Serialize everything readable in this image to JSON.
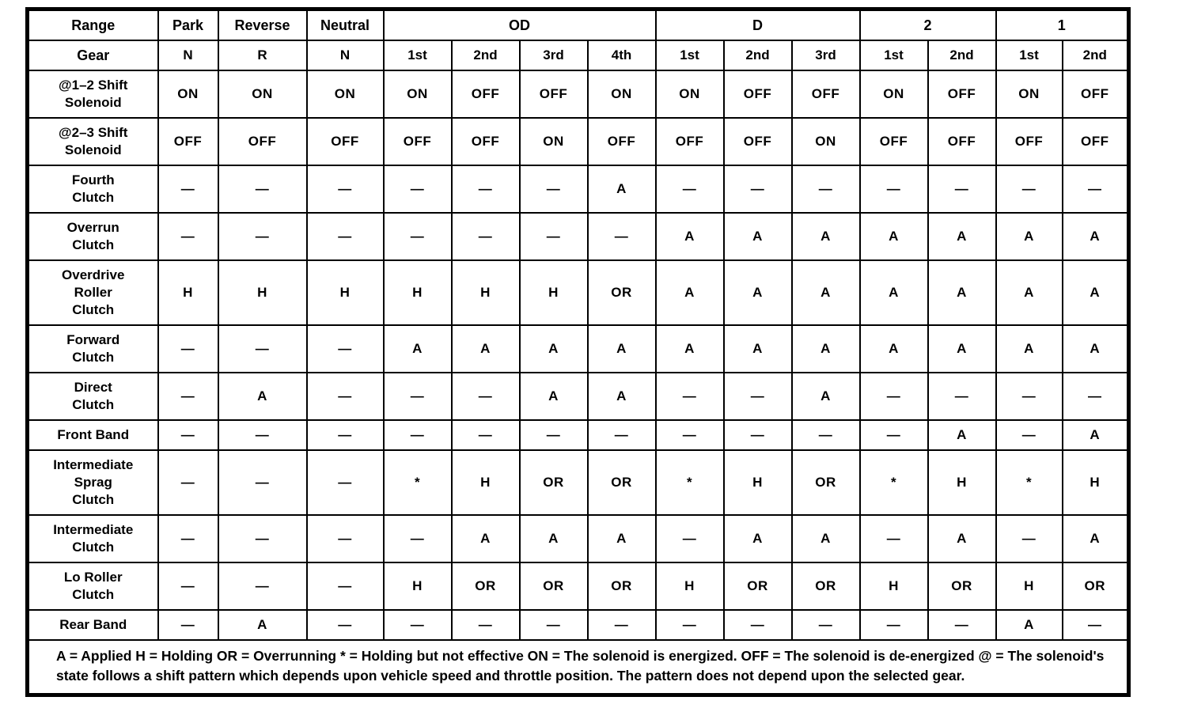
{
  "document": {
    "corner_headers": {
      "range": "Range",
      "gear": "Gear"
    },
    "range_groups": [
      {
        "label": "Park",
        "span": 1
      },
      {
        "label": "Reverse",
        "span": 1
      },
      {
        "label": "Neutral",
        "span": 1
      },
      {
        "label": "OD",
        "span": 4
      },
      {
        "label": "D",
        "span": 3
      },
      {
        "label": "2",
        "span": 2
      },
      {
        "label": "1",
        "span": 2
      }
    ],
    "gear_row": [
      "N",
      "R",
      "N",
      "1st",
      "2nd",
      "3rd",
      "4th",
      "1st",
      "2nd",
      "3rd",
      "1st",
      "2nd",
      "1st",
      "2nd"
    ],
    "rows": [
      {
        "label": "@1–2 Shift\nSolenoid",
        "values": [
          "ON",
          "ON",
          "ON",
          "ON",
          "OFF",
          "OFF",
          "ON",
          "ON",
          "OFF",
          "OFF",
          "ON",
          "OFF",
          "ON",
          "OFF"
        ]
      },
      {
        "label": "@2–3 Shift\nSolenoid",
        "values": [
          "OFF",
          "OFF",
          "OFF",
          "OFF",
          "OFF",
          "ON",
          "OFF",
          "OFF",
          "OFF",
          "ON",
          "OFF",
          "OFF",
          "OFF",
          "OFF"
        ]
      },
      {
        "label": "Fourth\nClutch",
        "values": [
          "—",
          "—",
          "—",
          "—",
          "—",
          "—",
          "A",
          "—",
          "—",
          "—",
          "—",
          "—",
          "—",
          "—"
        ]
      },
      {
        "label": "Overrun\nClutch",
        "values": [
          "—",
          "—",
          "—",
          "—",
          "—",
          "—",
          "—",
          "A",
          "A",
          "A",
          "A",
          "A",
          "A",
          "A"
        ]
      },
      {
        "label": "Overdrive\nRoller\nClutch",
        "values": [
          "H",
          "H",
          "H",
          "H",
          "H",
          "H",
          "OR",
          "A",
          "A",
          "A",
          "A",
          "A",
          "A",
          "A"
        ]
      },
      {
        "label": "Forward\nClutch",
        "values": [
          "—",
          "—",
          "—",
          "A",
          "A",
          "A",
          "A",
          "A",
          "A",
          "A",
          "A",
          "A",
          "A",
          "A"
        ]
      },
      {
        "label": "Direct\nClutch",
        "values": [
          "—",
          "A",
          "—",
          "—",
          "—",
          "A",
          "A",
          "—",
          "—",
          "A",
          "—",
          "—",
          "—",
          "—"
        ]
      },
      {
        "label": "Front Band",
        "values": [
          "—",
          "—",
          "—",
          "—",
          "—",
          "—",
          "—",
          "—",
          "—",
          "—",
          "—",
          "A",
          "—",
          "A"
        ]
      },
      {
        "label": "Intermediate\nSprag\nClutch",
        "values": [
          "—",
          "—",
          "—",
          "*",
          "H",
          "OR",
          "OR",
          "*",
          "H",
          "OR",
          "*",
          "H",
          "*",
          "H"
        ]
      },
      {
        "label": "Intermediate\nClutch",
        "values": [
          "—",
          "—",
          "—",
          "—",
          "A",
          "A",
          "A",
          "—",
          "A",
          "A",
          "—",
          "A",
          "—",
          "A"
        ]
      },
      {
        "label": "Lo Roller\nClutch",
        "values": [
          "—",
          "—",
          "—",
          "H",
          "OR",
          "OR",
          "OR",
          "H",
          "OR",
          "OR",
          "H",
          "OR",
          "H",
          "OR"
        ]
      },
      {
        "label": "Rear Band",
        "values": [
          "—",
          "A",
          "—",
          "—",
          "—",
          "—",
          "—",
          "—",
          "—",
          "—",
          "—",
          "—",
          "A",
          "—"
        ]
      }
    ],
    "legend": "A = Applied H = Holding OR = Overrunning * = Holding but not effective ON = The solenoid is energized. OFF = The solenoid is de-energized @ = The solenoid's state follows a shift pattern which depends upon vehicle speed and throttle position. The pattern does not depend upon the selected gear."
  }
}
